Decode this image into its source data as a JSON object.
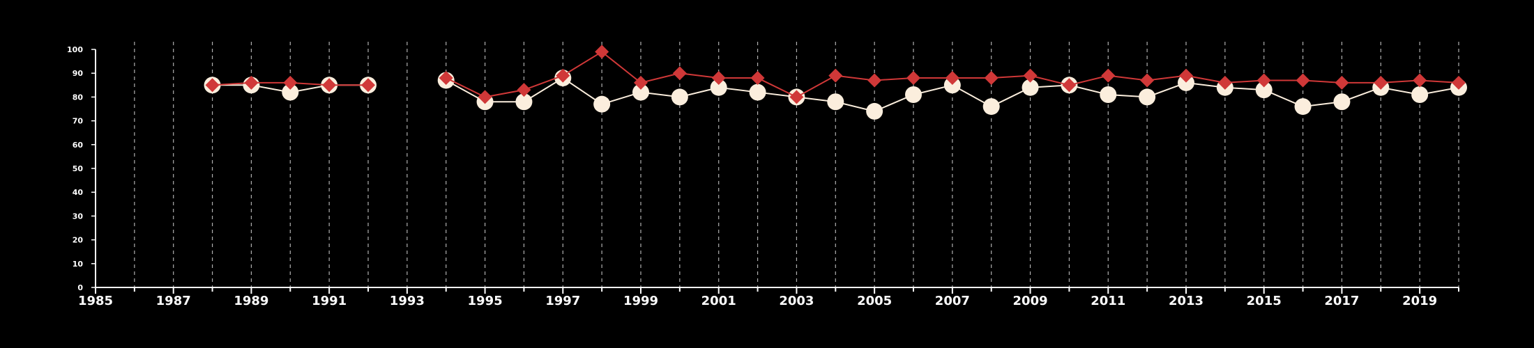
{
  "chart_data": {
    "type": "line",
    "title": "",
    "xlabel": "",
    "ylabel": "",
    "xlim": [
      1985,
      2020
    ],
    "ylim": [
      0,
      100
    ],
    "x_ticks": [
      1985,
      1987,
      1989,
      1991,
      1993,
      1995,
      1997,
      1999,
      2001,
      2003,
      2005,
      2007,
      2009,
      2011,
      2013,
      2015,
      2017,
      2019
    ],
    "y_ticks": [
      0,
      10,
      20,
      30,
      40,
      50,
      60,
      70,
      80,
      90,
      100
    ],
    "grid": "vertical dashed lines at each year 1986-2020",
    "legend": "none",
    "series": [
      {
        "color": "#fbeedd",
        "marker": "circle",
        "points": [
          [
            1988,
            85
          ],
          [
            1989,
            85
          ],
          [
            1990,
            82
          ],
          [
            1991,
            85
          ],
          [
            1992,
            85
          ],
          [
            1994,
            87
          ],
          [
            1995,
            78
          ],
          [
            1996,
            78
          ],
          [
            1997,
            88
          ],
          [
            1998,
            77
          ],
          [
            1999,
            82
          ],
          [
            2000,
            80
          ],
          [
            2001,
            84
          ],
          [
            2002,
            82
          ],
          [
            2003,
            80
          ],
          [
            2004,
            78
          ],
          [
            2005,
            74
          ],
          [
            2006,
            81
          ],
          [
            2007,
            85
          ],
          [
            2008,
            76
          ],
          [
            2009,
            84
          ],
          [
            2010,
            85
          ],
          [
            2011,
            81
          ],
          [
            2012,
            80
          ],
          [
            2013,
            86
          ],
          [
            2014,
            84
          ],
          [
            2015,
            83
          ],
          [
            2016,
            76
          ],
          [
            2017,
            78
          ],
          [
            2018,
            84
          ],
          [
            2019,
            81
          ],
          [
            2020,
            84
          ]
        ]
      },
      {
        "color": "#d03838",
        "marker": "diamond",
        "points": [
          [
            1988,
            85
          ],
          [
            1989,
            86
          ],
          [
            1990,
            86
          ],
          [
            1991,
            85
          ],
          [
            1992,
            85
          ],
          [
            1994,
            88
          ],
          [
            1995,
            80
          ],
          [
            1996,
            83
          ],
          [
            1997,
            89
          ],
          [
            1998,
            99
          ],
          [
            1999,
            86
          ],
          [
            2000,
            90
          ],
          [
            2001,
            88
          ],
          [
            2002,
            88
          ],
          [
            2003,
            80
          ],
          [
            2004,
            89
          ],
          [
            2005,
            87
          ],
          [
            2006,
            88
          ],
          [
            2007,
            88
          ],
          [
            2008,
            88
          ],
          [
            2009,
            89
          ],
          [
            2010,
            85
          ],
          [
            2011,
            89
          ],
          [
            2012,
            87
          ],
          [
            2013,
            89
          ],
          [
            2014,
            86
          ],
          [
            2015,
            87
          ],
          [
            2016,
            87
          ],
          [
            2017,
            86
          ],
          [
            2018,
            86
          ],
          [
            2019,
            87
          ],
          [
            2020,
            86
          ]
        ]
      }
    ]
  }
}
